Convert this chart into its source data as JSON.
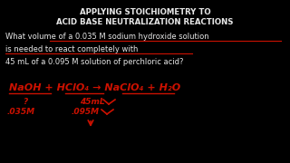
{
  "background_color": "#000000",
  "title_line1": "APPLYING STOICHIOMETRY TO",
  "title_line2": "ACID BASE NEUTRALIZATION REACTIONS",
  "title_color": "#e8e8e8",
  "title_fontsize": 6.2,
  "question_line1": "What volume of a 0.035 M sodium hydroxide solution",
  "question_line2": "is needed to react completely with",
  "question_line3": "45 mL of a 0.095 M solution of perchloric acid?",
  "question_color": "#e8e8e8",
  "question_fontsize": 6.0,
  "eq_text": "NaOH + HClO₄ → NaClO₄ + H₂O",
  "eq_color": "#cc1100",
  "eq_fontsize": 8.0,
  "label_q": "?",
  "label_45ml": "45mL",
  "label_035m": ".035M",
  "label_095m": ".095M",
  "label_color": "#cc1100",
  "label_fontsize": 6.5,
  "underline_color": "#cc1100",
  "arrow_color": "#cc1100"
}
